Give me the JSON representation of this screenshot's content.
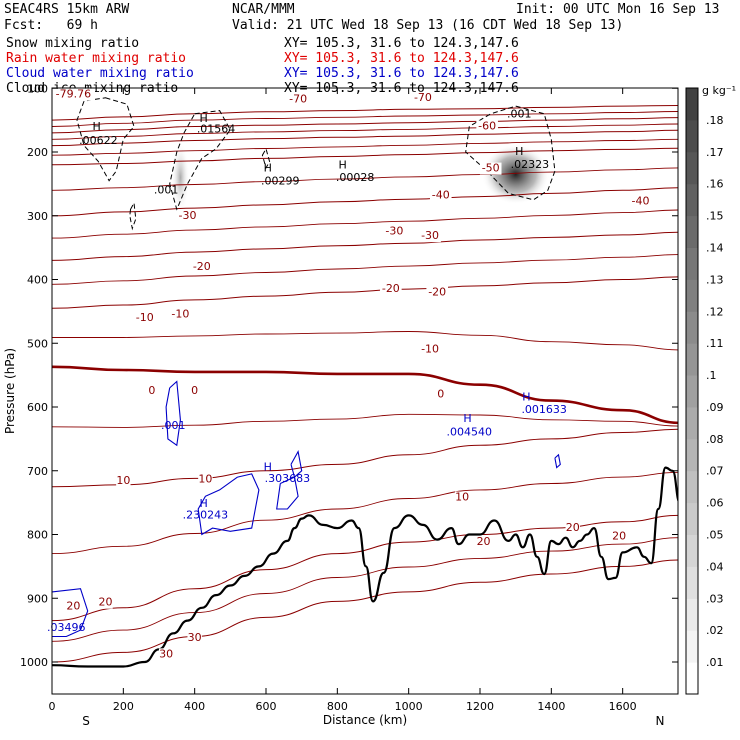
{
  "header": {
    "model": "SEAC4RS 15km ARW",
    "center": "NCAR/MMM",
    "init": "Init: 00 UTC Mon 16 Sep 13",
    "fcst": "Fcst:   69 h",
    "valid": "Valid: 21 UTC Wed 18 Sep 13 (16 CDT Wed 18 Sep 13)",
    "fields": [
      {
        "name": "Snow mixing ratio",
        "xy": "XY= 105.3, 31.6 to 124.3,147.6",
        "color": "#000000"
      },
      {
        "name": "Rain water mixing ratio",
        "xy": "XY= 105.3, 31.6 to 124.3,147.6",
        "color": "#e00000"
      },
      {
        "name": "Cloud water mixing ratio",
        "xy": "XY= 105.3, 31.6 to 124.3,147.6",
        "color": "#0000c8"
      },
      {
        "name": "Cloud ice mixing ratio",
        "xy": "XY= 105.3, 31.6 to 124.3,147.6",
        "color": "#000000"
      }
    ]
  },
  "chart_data": {
    "type": "cross-section",
    "xlabel": "Distance (km)",
    "ylabel": "Pressure (hPa)",
    "xlim": [
      0,
      1760
    ],
    "ylim": [
      1050,
      100
    ],
    "xticks": [
      0,
      200,
      400,
      600,
      800,
      1000,
      1200,
      1400,
      1600
    ],
    "yticks": [
      100,
      200,
      300,
      400,
      500,
      600,
      700,
      800,
      900,
      1000
    ],
    "x_end_labels": {
      "left": "S",
      "right": "N"
    },
    "colorbar": {
      "unit": "g kg⁻¹",
      "levels": [
        ".01",
        ".02",
        ".03",
        ".04",
        ".05",
        ".06",
        ".07",
        ".08",
        ".09",
        ".1",
        ".11",
        ".12",
        ".13",
        ".14",
        ".15",
        ".16",
        ".17",
        ".18"
      ]
    },
    "temperature_contours": [
      {
        "label": "-70",
        "y": [
          150,
          145,
          140,
          137,
          135,
          133,
          132,
          130,
          128,
          127
        ]
      },
      {
        "label": "-60",
        "y": [
          170,
          165,
          160,
          158,
          156,
          154,
          152,
          150,
          148,
          146
        ]
      },
      {
        "label": "-50",
        "y": [
          190,
          186,
          182,
          179,
          177,
          175,
          172,
          170,
          168,
          166
        ]
      },
      {
        "label": "-40",
        "y": [
          220,
          218,
          214,
          210,
          207,
          204,
          201,
          198,
          196,
          194
        ]
      },
      {
        "label": "-30",
        "y": [
          300,
          294,
          288,
          283,
          278,
          274,
          270,
          265,
          260,
          256
        ]
      },
      {
        "label": "-20",
        "y": [
          370,
          364,
          357,
          352,
          347,
          343,
          338,
          334,
          330,
          326
        ]
      },
      {
        "label": "-10",
        "y": [
          445,
          440,
          432,
          426,
          420,
          415,
          410,
          405,
          400,
          396
        ]
      },
      {
        "label": "0",
        "y": [
          537,
          542,
          545,
          545,
          548,
          548,
          565,
          590,
          605,
          625
        ]
      },
      {
        "label": "10",
        "y": [
          725,
          722,
          712,
          700,
          690,
          675,
          660,
          650,
          640,
          635
        ]
      },
      {
        "label": "20",
        "y": [
          935,
          915,
          885,
          855,
          830,
          812,
          800,
          790,
          780,
          770
        ]
      },
      {
        "label": "30",
        "y": [
          1000,
          985,
          960,
          930,
          905,
          890,
          875,
          862,
          850,
          840
        ]
      }
    ],
    "temperature_x": [
      0,
      200,
      400,
      600,
      800,
      1000,
      1200,
      1400,
      1600,
      1760
    ],
    "contour_labels": [
      {
        "text": "-79.76",
        "x": 60,
        "p": 110
      },
      {
        "text": "-70",
        "x": 690,
        "p": 118
      },
      {
        "text": "-70",
        "x": 1040,
        "p": 115
      },
      {
        "text": "-60",
        "x": 1220,
        "p": 160
      },
      {
        "text": "-50",
        "x": 1230,
        "p": 226
      },
      {
        "text": "-40",
        "x": 1090,
        "p": 268
      },
      {
        "text": "-40",
        "x": 1650,
        "p": 278
      },
      {
        "text": "-30",
        "x": 380,
        "p": 300
      },
      {
        "text": "-30",
        "x": 960,
        "p": 325
      },
      {
        "text": "-30",
        "x": 1060,
        "p": 332
      },
      {
        "text": "-20",
        "x": 420,
        "p": 380
      },
      {
        "text": "-20",
        "x": 950,
        "p": 415
      },
      {
        "text": "-20",
        "x": 1080,
        "p": 420
      },
      {
        "text": "-10",
        "x": 260,
        "p": 460
      },
      {
        "text": "-10",
        "x": 360,
        "p": 455
      },
      {
        "text": "-10",
        "x": 1060,
        "p": 510
      },
      {
        "text": "0",
        "x": 280,
        "p": 575
      },
      {
        "text": "0",
        "x": 400,
        "p": 575
      },
      {
        "text": "0",
        "x": 1090,
        "p": 580
      },
      {
        "text": "10",
        "x": 200,
        "p": 716
      },
      {
        "text": "10",
        "x": 430,
        "p": 714
      },
      {
        "text": "10",
        "x": 1150,
        "p": 742
      },
      {
        "text": "20",
        "x": 60,
        "p": 913
      },
      {
        "text": "20",
        "x": 150,
        "p": 907
      },
      {
        "text": "20",
        "x": 1210,
        "p": 812
      },
      {
        "text": "20",
        "x": 1460,
        "p": 790
      },
      {
        "text": "20",
        "x": 1590,
        "p": 803
      },
      {
        "text": "30",
        "x": 400,
        "p": 962
      },
      {
        "text": "30",
        "x": 320,
        "p": 988
      }
    ],
    "cloud_ice_max_labels": [
      {
        "text": ".00622",
        "x": 130,
        "p": 183
      },
      {
        "text": ".01564",
        "x": 460,
        "p": 165
      },
      {
        "text": ".001",
        "x": 320,
        "p": 260
      },
      {
        "text": ".00299",
        "x": 640,
        "p": 246
      },
      {
        "text": ".00028",
        "x": 850,
        "p": 241
      },
      {
        "text": ".001",
        "x": 1310,
        "p": 141
      },
      {
        "text": ".02323",
        "x": 1340,
        "p": 220
      }
    ],
    "cloud_water_labels": [
      {
        "text": ".001",
        "x": 340,
        "p": 630
      },
      {
        "text": ".004540",
        "x": 1170,
        "p": 640
      },
      {
        "text": ".001633",
        "x": 1380,
        "p": 605
      },
      {
        "text": ".303683",
        "x": 660,
        "p": 713
      },
      {
        "text": ".230243",
        "x": 430,
        "p": 770
      },
      {
        "text": ".03496",
        "x": 40,
        "p": 947
      }
    ],
    "max_markers": [
      {
        "text": "H",
        "x": 125,
        "p": 161
      },
      {
        "text": "H",
        "x": 425,
        "p": 148
      },
      {
        "text": "H",
        "x": 605,
        "p": 226
      },
      {
        "text": "H",
        "x": 815,
        "p": 221
      },
      {
        "text": "H",
        "x": 1310,
        "p": 200
      },
      {
        "text": "H",
        "x": 1165,
        "p": 619
      },
      {
        "text": "H",
        "x": 1330,
        "p": 585
      },
      {
        "text": "H",
        "x": 605,
        "p": 695
      },
      {
        "text": "H",
        "x": 425,
        "p": 752
      }
    ],
    "terrain": {
      "x": [
        0,
        100,
        200,
        260,
        300,
        340,
        380,
        420,
        460,
        500,
        540,
        580,
        620,
        660,
        680,
        700,
        720,
        760,
        800,
        840,
        860,
        880,
        900,
        930,
        960,
        1000,
        1040,
        1080,
        1120,
        1140,
        1170,
        1200,
        1240,
        1280,
        1300,
        1320,
        1340,
        1360,
        1380,
        1400,
        1420,
        1440,
        1460,
        1480,
        1500,
        1520,
        1540,
        1560,
        1580,
        1600,
        1640,
        1660,
        1680,
        1700,
        1720,
        1740,
        1760
      ],
      "p": [
        1005,
        1007,
        1007,
        1000,
        980,
        955,
        935,
        915,
        895,
        880,
        865,
        850,
        830,
        810,
        790,
        775,
        770,
        785,
        790,
        778,
        790,
        850,
        905,
        860,
        790,
        770,
        785,
        808,
        790,
        815,
        800,
        800,
        778,
        810,
        800,
        820,
        800,
        835,
        862,
        810,
        815,
        805,
        820,
        810,
        800,
        790,
        835,
        870,
        868,
        828,
        820,
        835,
        845,
        760,
        695,
        700,
        750
      ],
      "color": "#000000"
    },
    "colors": {
      "temperature": "#8b0000",
      "zero_isotherm": "#8b0000",
      "cloud_water": "#0000c8",
      "cloud_ice": "#000000"
    }
  }
}
